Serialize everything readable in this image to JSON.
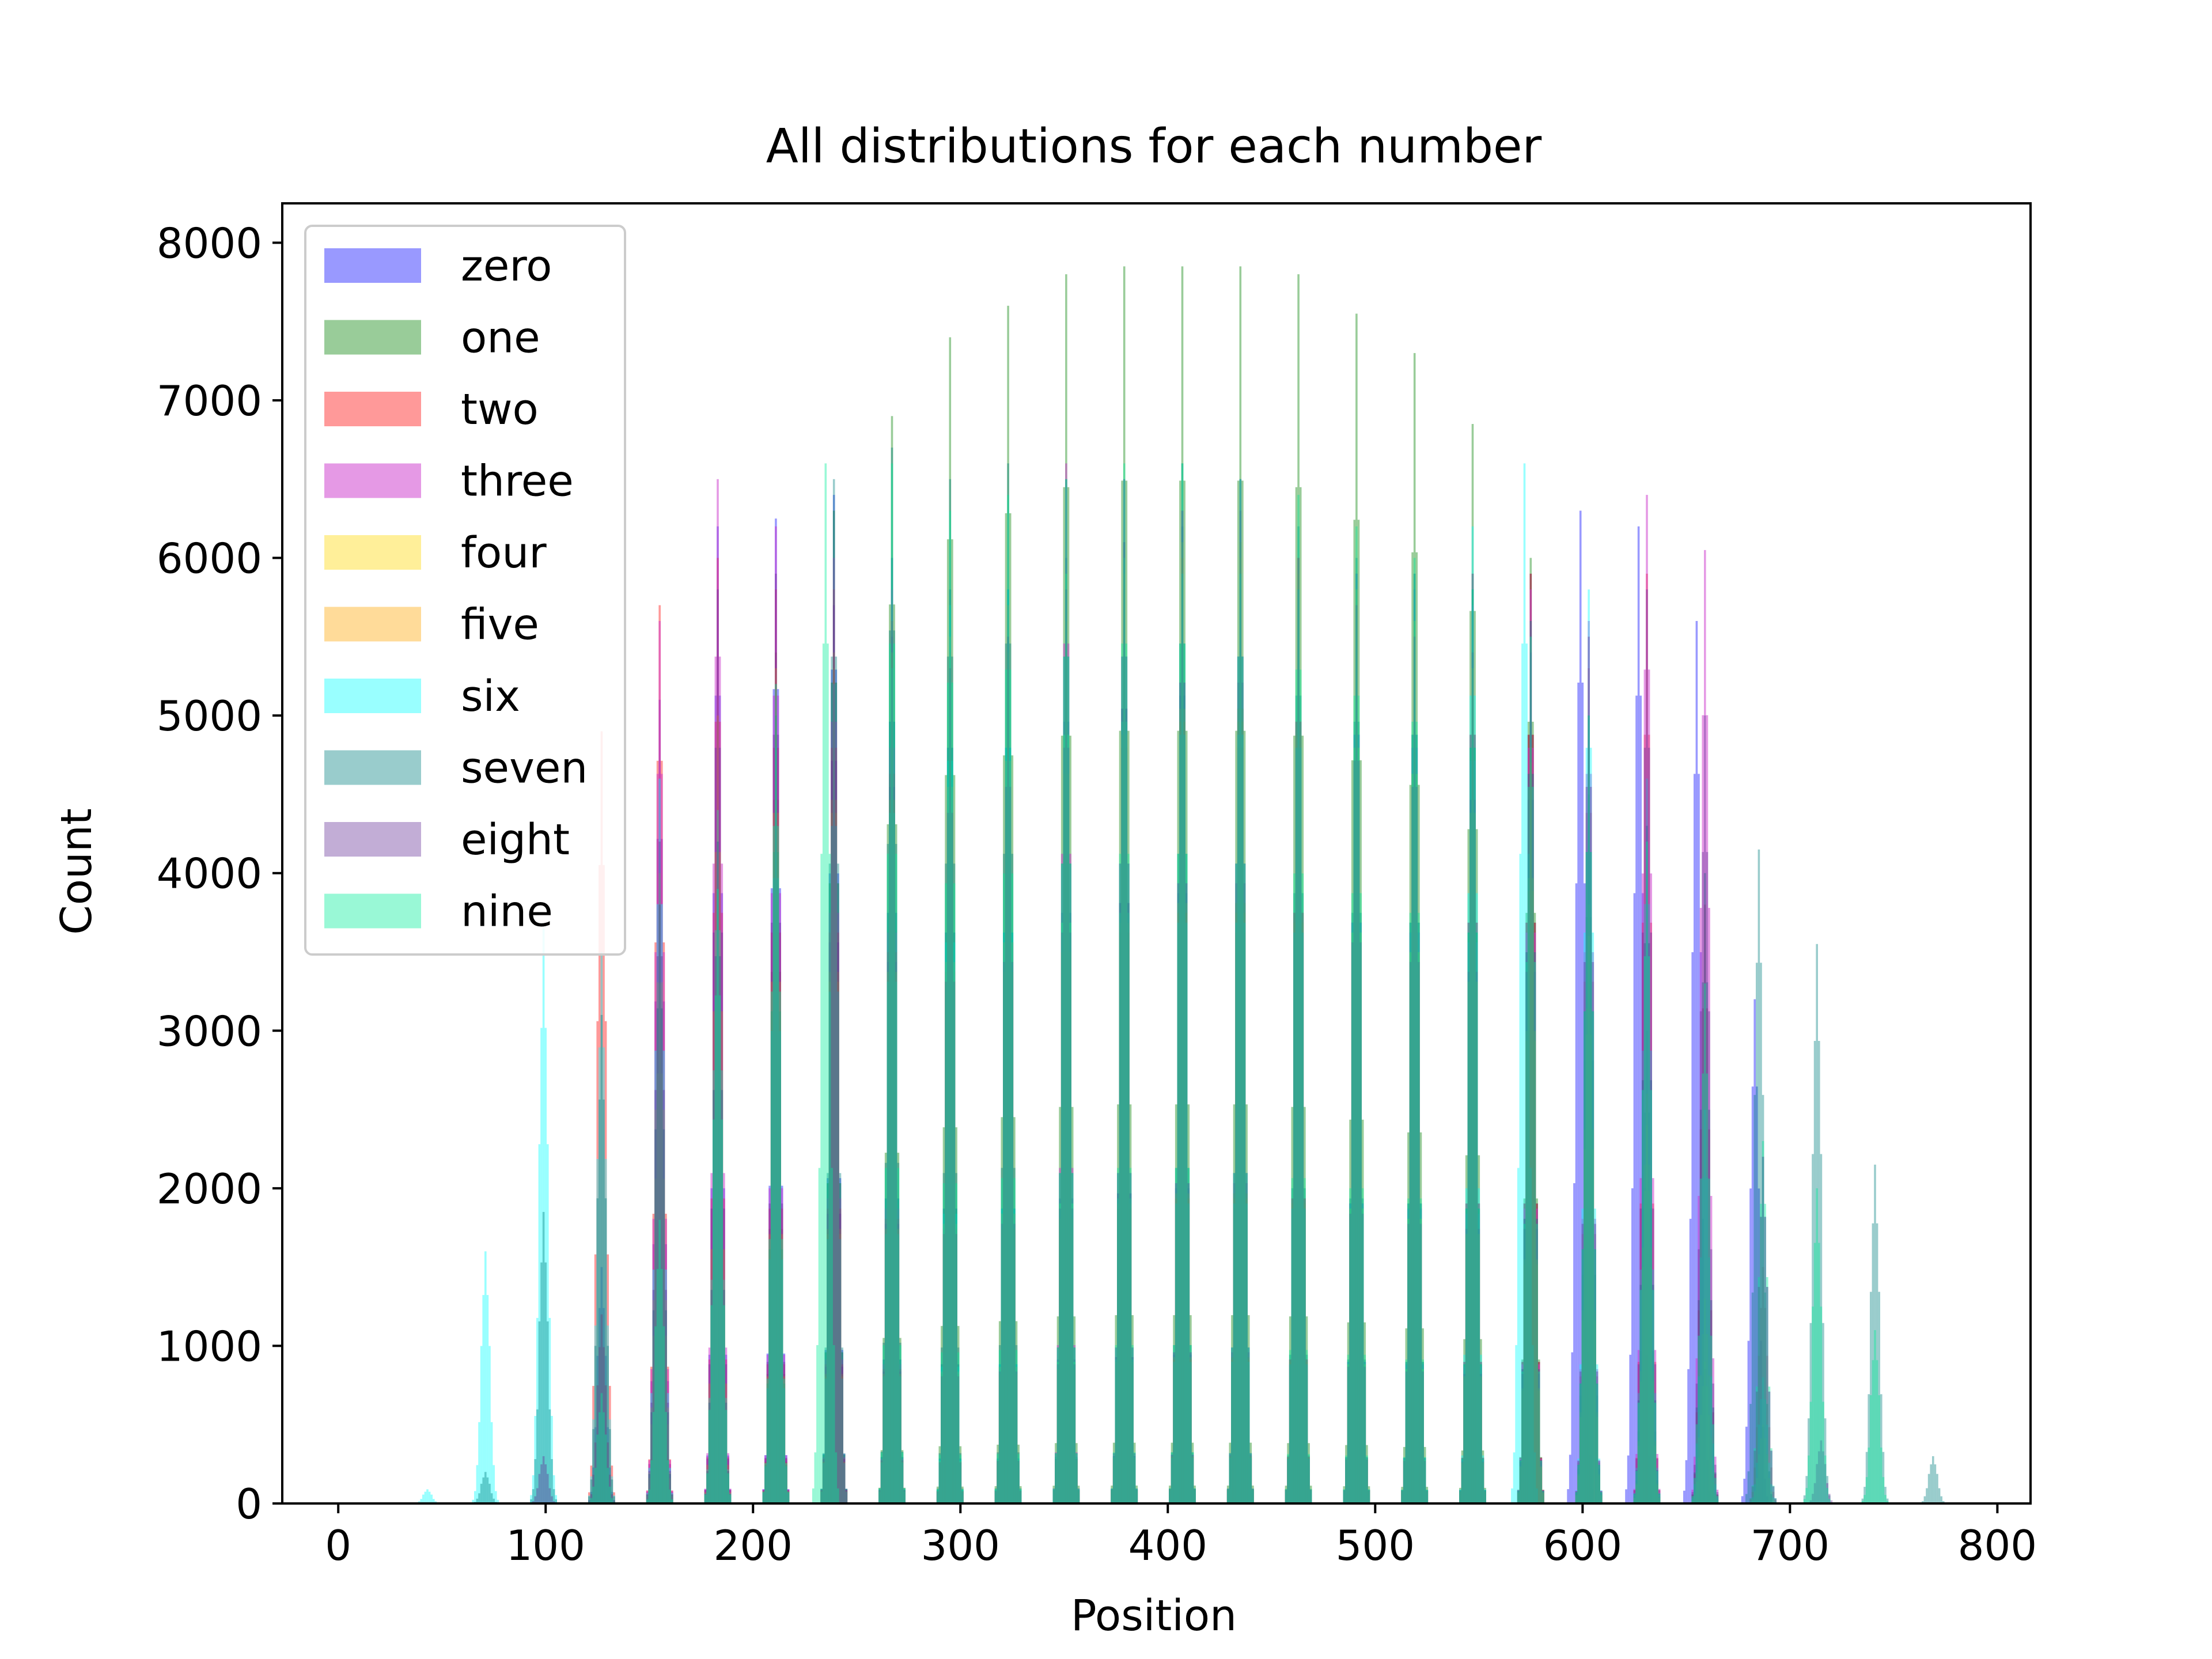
{
  "chart_data": {
    "type": "bar",
    "title": "All distributions for each number",
    "xlabel": "Position",
    "ylabel": "Count",
    "xlim": [
      -27,
      816
    ],
    "ylim": [
      0,
      8250
    ],
    "xticks": [
      0,
      100,
      200,
      300,
      400,
      500,
      600,
      700,
      800
    ],
    "yticks": [
      0,
      1000,
      2000,
      3000,
      4000,
      5000,
      6000,
      7000,
      8000
    ],
    "xtick_labels": [
      "0",
      "100",
      "200",
      "300",
      "400",
      "500",
      "600",
      "700",
      "800"
    ],
    "ytick_labels": [
      "0",
      "1000",
      "2000",
      "3000",
      "4000",
      "5000",
      "6000",
      "7000",
      "8000"
    ],
    "grid": false,
    "legend_position": "upper left",
    "series": [
      {
        "name": "zero",
        "color": "#0000ff",
        "alpha": 0.4,
        "peaks": [
          {
            "x": 127,
            "y": 1500
          },
          {
            "x": 155,
            "y": 5100
          },
          {
            "x": 183,
            "y": 6200
          },
          {
            "x": 211,
            "y": 6250
          },
          {
            "x": 239,
            "y": 6400
          },
          {
            "x": 267,
            "y": 6000
          },
          {
            "x": 295,
            "y": 5800
          },
          {
            "x": 323,
            "y": 5800
          },
          {
            "x": 351,
            "y": 6000
          },
          {
            "x": 379,
            "y": 6100
          },
          {
            "x": 407,
            "y": 6200
          },
          {
            "x": 435,
            "y": 6100
          },
          {
            "x": 463,
            "y": 5800
          },
          {
            "x": 491,
            "y": 5900
          },
          {
            "x": 519,
            "y": 5800
          },
          {
            "x": 547,
            "y": 5900
          },
          {
            "x": 575,
            "y": 5900
          },
          {
            "x": 599,
            "y": 6300
          },
          {
            "x": 627,
            "y": 6200
          },
          {
            "x": 655,
            "y": 5600
          },
          {
            "x": 683,
            "y": 3200
          }
        ]
      },
      {
        "name": "one",
        "color": "#008000",
        "alpha": 0.4,
        "peaks": [
          {
            "x": 211,
            "y": 5400
          },
          {
            "x": 239,
            "y": 6300
          },
          {
            "x": 267,
            "y": 6900
          },
          {
            "x": 295,
            "y": 7400
          },
          {
            "x": 323,
            "y": 7600
          },
          {
            "x": 351,
            "y": 7800
          },
          {
            "x": 379,
            "y": 7850
          },
          {
            "x": 407,
            "y": 7850
          },
          {
            "x": 435,
            "y": 7850
          },
          {
            "x": 463,
            "y": 7800
          },
          {
            "x": 491,
            "y": 7550
          },
          {
            "x": 519,
            "y": 7300
          },
          {
            "x": 547,
            "y": 6850
          },
          {
            "x": 575,
            "y": 6000
          },
          {
            "x": 603,
            "y": 4500
          },
          {
            "x": 631,
            "y": 3000
          }
        ]
      },
      {
        "name": "two",
        "color": "#ff0000",
        "alpha": 0.4,
        "peaks": [
          {
            "x": 127,
            "y": 4900
          },
          {
            "x": 155,
            "y": 5700
          },
          {
            "x": 183,
            "y": 6000
          },
          {
            "x": 211,
            "y": 5800
          },
          {
            "x": 239,
            "y": 5800
          },
          {
            "x": 267,
            "y": 5600
          },
          {
            "x": 295,
            "y": 5400
          },
          {
            "x": 323,
            "y": 5700
          },
          {
            "x": 351,
            "y": 5900
          },
          {
            "x": 379,
            "y": 5800
          },
          {
            "x": 407,
            "y": 6000
          },
          {
            "x": 435,
            "y": 5800
          },
          {
            "x": 463,
            "y": 6000
          },
          {
            "x": 491,
            "y": 5900
          },
          {
            "x": 519,
            "y": 5900
          },
          {
            "x": 547,
            "y": 5900
          },
          {
            "x": 575,
            "y": 5900
          },
          {
            "x": 603,
            "y": 5300
          },
          {
            "x": 631,
            "y": 5900
          },
          {
            "x": 659,
            "y": 3800
          },
          {
            "x": 687,
            "y": 1500
          }
        ]
      },
      {
        "name": "three",
        "color": "#cc33cc",
        "alpha": 0.5,
        "peaks": [
          {
            "x": 155,
            "y": 5600
          },
          {
            "x": 183,
            "y": 6500
          },
          {
            "x": 211,
            "y": 6200
          },
          {
            "x": 239,
            "y": 6000
          },
          {
            "x": 267,
            "y": 5800
          },
          {
            "x": 295,
            "y": 5500
          },
          {
            "x": 323,
            "y": 5700
          },
          {
            "x": 351,
            "y": 6600
          },
          {
            "x": 379,
            "y": 6500
          },
          {
            "x": 407,
            "y": 6300
          },
          {
            "x": 435,
            "y": 6500
          },
          {
            "x": 463,
            "y": 6000
          },
          {
            "x": 491,
            "y": 5900
          },
          {
            "x": 519,
            "y": 5800
          },
          {
            "x": 547,
            "y": 5700
          },
          {
            "x": 575,
            "y": 5800
          },
          {
            "x": 603,
            "y": 5600
          },
          {
            "x": 631,
            "y": 6400
          },
          {
            "x": 659,
            "y": 6050
          },
          {
            "x": 687,
            "y": 2200
          }
        ]
      },
      {
        "name": "four",
        "color": "#ffd700",
        "alpha": 0.4,
        "peaks": [
          {
            "x": 155,
            "y": 3300
          },
          {
            "x": 183,
            "y": 4400
          },
          {
            "x": 211,
            "y": 5000
          },
          {
            "x": 239,
            "y": 5300
          },
          {
            "x": 267,
            "y": 5400
          },
          {
            "x": 295,
            "y": 5500
          },
          {
            "x": 323,
            "y": 5700
          },
          {
            "x": 351,
            "y": 5900
          },
          {
            "x": 379,
            "y": 6000
          },
          {
            "x": 407,
            "y": 6100
          },
          {
            "x": 435,
            "y": 6100
          },
          {
            "x": 463,
            "y": 6000
          },
          {
            "x": 491,
            "y": 5800
          },
          {
            "x": 519,
            "y": 5600
          },
          {
            "x": 547,
            "y": 5300
          },
          {
            "x": 575,
            "y": 4800
          },
          {
            "x": 603,
            "y": 3600
          },
          {
            "x": 631,
            "y": 2400
          },
          {
            "x": 659,
            "y": 900
          }
        ]
      },
      {
        "name": "five",
        "color": "#ffa500",
        "alpha": 0.4,
        "peaks": [
          {
            "x": 127,
            "y": 1200
          },
          {
            "x": 155,
            "y": 4000
          },
          {
            "x": 183,
            "y": 5000
          },
          {
            "x": 211,
            "y": 5300
          },
          {
            "x": 239,
            "y": 5400
          },
          {
            "x": 267,
            "y": 5300
          },
          {
            "x": 295,
            "y": 5300
          },
          {
            "x": 323,
            "y": 5400
          },
          {
            "x": 351,
            "y": 5600
          },
          {
            "x": 379,
            "y": 5900
          },
          {
            "x": 407,
            "y": 6000
          },
          {
            "x": 435,
            "y": 6000
          },
          {
            "x": 463,
            "y": 5900
          },
          {
            "x": 491,
            "y": 5800
          },
          {
            "x": 519,
            "y": 5600
          },
          {
            "x": 547,
            "y": 5300
          },
          {
            "x": 575,
            "y": 4700
          },
          {
            "x": 603,
            "y": 3800
          },
          {
            "x": 631,
            "y": 2600
          },
          {
            "x": 659,
            "y": 1300
          },
          {
            "x": 687,
            "y": 500
          }
        ]
      },
      {
        "name": "six",
        "color": "#00ffff",
        "alpha": 0.4,
        "peaks": [
          {
            "x": 43,
            "y": 90
          },
          {
            "x": 71,
            "y": 1600
          },
          {
            "x": 99,
            "y": 3650
          },
          {
            "x": 127,
            "y": 3500
          },
          {
            "x": 155,
            "y": 4600
          },
          {
            "x": 183,
            "y": 4400
          },
          {
            "x": 211,
            "y": 4800
          },
          {
            "x": 239,
            "y": 5200
          },
          {
            "x": 267,
            "y": 5300
          },
          {
            "x": 295,
            "y": 5700
          },
          {
            "x": 323,
            "y": 5800
          },
          {
            "x": 351,
            "y": 5900
          },
          {
            "x": 379,
            "y": 6000
          },
          {
            "x": 407,
            "y": 5900
          },
          {
            "x": 435,
            "y": 5900
          },
          {
            "x": 463,
            "y": 5800
          },
          {
            "x": 491,
            "y": 5900
          },
          {
            "x": 519,
            "y": 5900
          },
          {
            "x": 547,
            "y": 6200
          },
          {
            "x": 572,
            "y": 6600
          },
          {
            "x": 603,
            "y": 5800
          },
          {
            "x": 631,
            "y": 4600
          },
          {
            "x": 659,
            "y": 2500
          },
          {
            "x": 687,
            "y": 800
          }
        ]
      },
      {
        "name": "seven",
        "color": "#008080",
        "alpha": 0.4,
        "peaks": [
          {
            "x": 71,
            "y": 200
          },
          {
            "x": 99,
            "y": 1850
          },
          {
            "x": 127,
            "y": 3100
          },
          {
            "x": 155,
            "y": 3800
          },
          {
            "x": 183,
            "y": 4200
          },
          {
            "x": 211,
            "y": 5000
          },
          {
            "x": 239,
            "y": 6500
          },
          {
            "x": 267,
            "y": 6700
          },
          {
            "x": 295,
            "y": 6500
          },
          {
            "x": 323,
            "y": 6600
          },
          {
            "x": 351,
            "y": 6500
          },
          {
            "x": 379,
            "y": 6500
          },
          {
            "x": 407,
            "y": 6600
          },
          {
            "x": 435,
            "y": 6500
          },
          {
            "x": 463,
            "y": 6200
          },
          {
            "x": 491,
            "y": 6000
          },
          {
            "x": 519,
            "y": 5900
          },
          {
            "x": 547,
            "y": 5800
          },
          {
            "x": 575,
            "y": 5600
          },
          {
            "x": 603,
            "y": 5000
          },
          {
            "x": 631,
            "y": 4300
          },
          {
            "x": 659,
            "y": 4000
          },
          {
            "x": 685,
            "y": 4150
          },
          {
            "x": 713,
            "y": 3550
          },
          {
            "x": 741,
            "y": 2150
          },
          {
            "x": 769,
            "y": 300
          }
        ]
      },
      {
        "name": "eight",
        "color": "#663399",
        "alpha": 0.4,
        "peaks": [
          {
            "x": 99,
            "y": 300
          },
          {
            "x": 127,
            "y": 1200
          },
          {
            "x": 155,
            "y": 4200
          },
          {
            "x": 183,
            "y": 5800
          },
          {
            "x": 211,
            "y": 5900
          },
          {
            "x": 239,
            "y": 5700
          },
          {
            "x": 267,
            "y": 5500
          },
          {
            "x": 295,
            "y": 5300
          },
          {
            "x": 323,
            "y": 5500
          },
          {
            "x": 351,
            "y": 5800
          },
          {
            "x": 379,
            "y": 6100
          },
          {
            "x": 407,
            "y": 6300
          },
          {
            "x": 435,
            "y": 6300
          },
          {
            "x": 463,
            "y": 6000
          },
          {
            "x": 491,
            "y": 5700
          },
          {
            "x": 519,
            "y": 5500
          },
          {
            "x": 547,
            "y": 5400
          },
          {
            "x": 575,
            "y": 5400
          },
          {
            "x": 603,
            "y": 5500
          },
          {
            "x": 631,
            "y": 5800
          },
          {
            "x": 659,
            "y": 5000
          },
          {
            "x": 687,
            "y": 2200
          },
          {
            "x": 715,
            "y": 400
          }
        ]
      },
      {
        "name": "nine",
        "color": "#00ee99",
        "alpha": 0.4,
        "peaks": [
          {
            "x": 127,
            "y": 700
          },
          {
            "x": 155,
            "y": 1800
          },
          {
            "x": 183,
            "y": 3900
          },
          {
            "x": 211,
            "y": 5200
          },
          {
            "x": 235,
            "y": 6600
          },
          {
            "x": 267,
            "y": 6600
          },
          {
            "x": 295,
            "y": 6300
          },
          {
            "x": 323,
            "y": 6400
          },
          {
            "x": 351,
            "y": 6500
          },
          {
            "x": 379,
            "y": 6600
          },
          {
            "x": 407,
            "y": 6600
          },
          {
            "x": 435,
            "y": 6500
          },
          {
            "x": 463,
            "y": 6400
          },
          {
            "x": 491,
            "y": 6200
          },
          {
            "x": 519,
            "y": 6000
          },
          {
            "x": 547,
            "y": 5800
          },
          {
            "x": 575,
            "y": 5500
          },
          {
            "x": 603,
            "y": 5000
          },
          {
            "x": 631,
            "y": 4200
          },
          {
            "x": 659,
            "y": 3300
          },
          {
            "x": 687,
            "y": 2300
          },
          {
            "x": 713,
            "y": 2000
          },
          {
            "x": 741,
            "y": 1100
          }
        ]
      }
    ]
  }
}
